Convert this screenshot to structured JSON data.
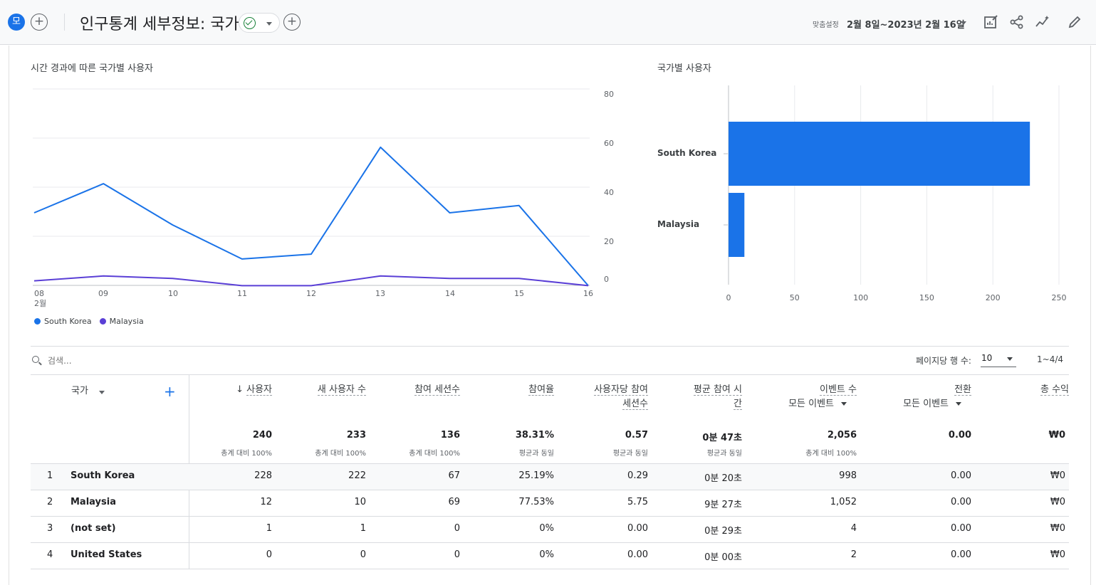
{
  "header": {
    "avatar_letter": "모",
    "title": "인구통계 세부정보: 국가",
    "date_label": "맞춤설정",
    "date_range": "2월 8일~2023년 2월 16일",
    "icons": [
      "add-comparison-icon",
      "status-check-icon",
      "add-icon",
      "customize-report-icon",
      "share-icon",
      "insights-icon",
      "edit-icon"
    ]
  },
  "line_chart": {
    "title": "시간 경과에 따른 국가별 사용자",
    "y_ticks": [
      "80",
      "60",
      "40",
      "20",
      "0"
    ],
    "x_ticks": [
      "08",
      "09",
      "10",
      "11",
      "12",
      "13",
      "14",
      "15",
      "16"
    ],
    "x_month": "2월",
    "legend": [
      "South Korea",
      "Malaysia"
    ]
  },
  "bar_chart": {
    "title": "국가별 사용자",
    "x_ticks": [
      "0",
      "50",
      "100",
      "150",
      "200",
      "250"
    ]
  },
  "chart_data": [
    {
      "type": "line",
      "title": "시간 경과에 따른 국가별 사용자",
      "x": [
        "08",
        "09",
        "10",
        "11",
        "12",
        "13",
        "14",
        "15",
        "16"
      ],
      "ylim": [
        0,
        80
      ],
      "series": [
        {
          "name": "South Korea",
          "color": "#1a73e8",
          "values": [
            29,
            41,
            24,
            10,
            12,
            56,
            29,
            32,
            -1
          ]
        },
        {
          "name": "Malaysia",
          "color": "#5a3fd6",
          "values": [
            1,
            3,
            2,
            -1,
            -1,
            3,
            2,
            2,
            -1
          ]
        }
      ]
    },
    {
      "type": "bar",
      "title": "국가별 사용자",
      "categories": [
        "South Korea",
        "Malaysia"
      ],
      "values": [
        228,
        12
      ],
      "xlim": [
        0,
        250
      ],
      "color": "#1a73e8"
    }
  ],
  "table": {
    "search_placeholder": "검색...",
    "rows_per_page_label": "페이지당 행 수:",
    "rows_per_page": "10",
    "pagination": "1~4/4",
    "dim_header": "국가",
    "columns": [
      {
        "label": "사용자",
        "label2": "",
        "total": "240",
        "sub": "총계 대비 100%",
        "sorted": true
      },
      {
        "label": "새 사용자 수",
        "label2": "",
        "total": "233",
        "sub": "총계 대비 100%"
      },
      {
        "label": "참여 세션수",
        "label2": "",
        "total": "136",
        "sub": "총계 대비 100%"
      },
      {
        "label": "참여율",
        "label2": "",
        "total": "38.31%",
        "sub": "평균과 동일"
      },
      {
        "label": "사용자당 참여",
        "label2": "세션수",
        "total": "0.57",
        "sub": "평균과 동일"
      },
      {
        "label": "평균 참여 시",
        "label2": "간",
        "total": "0분 47초",
        "sub": "평균과 동일"
      },
      {
        "label": "이벤트 수",
        "label2": "모든 이벤트",
        "total": "2,056",
        "sub": "총계 대비 100%"
      },
      {
        "label": "전환",
        "label2": "모든 이벤트",
        "total": "0.00",
        "sub": ""
      },
      {
        "label": "총 수익",
        "label2": "",
        "total": "₩0",
        "sub": ""
      }
    ],
    "rows": [
      {
        "rank": "1",
        "country": "South Korea",
        "cells": [
          "228",
          "222",
          "67",
          "25.19%",
          "0.29",
          "0분 20초",
          "998",
          "0.00",
          "₩0"
        ]
      },
      {
        "rank": "2",
        "country": "Malaysia",
        "cells": [
          "12",
          "10",
          "69",
          "77.53%",
          "5.75",
          "9분 27초",
          "1,052",
          "0.00",
          "₩0"
        ]
      },
      {
        "rank": "3",
        "country": "(not set)",
        "cells": [
          "1",
          "1",
          "0",
          "0%",
          "0.00",
          "0분 29초",
          "4",
          "0.00",
          "₩0"
        ]
      },
      {
        "rank": "4",
        "country": "United States",
        "cells": [
          "0",
          "0",
          "0",
          "0%",
          "0.00",
          "0분 00초",
          "2",
          "0.00",
          "₩0"
        ]
      }
    ]
  }
}
